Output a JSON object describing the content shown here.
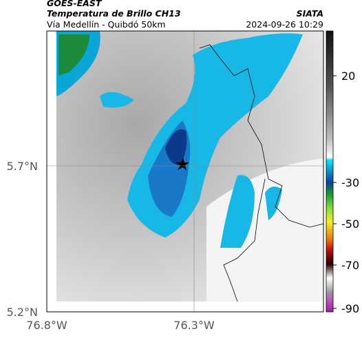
{
  "header": {
    "source": "GOES-EAST",
    "title": "Temperatura de Brillo CH13",
    "subtitle": "Vía Medellín - Quibdó 50km",
    "organization": "SIATA",
    "timestamp": "2024-09-26 10:29"
  },
  "map": {
    "lat_labels": [
      "5.7°N",
      "5.2°N"
    ],
    "lon_labels": [
      "76.8°W",
      "76.3°W"
    ]
  },
  "colorbar": {
    "ticks": [
      20,
      -30,
      -50,
      -70,
      -90
    ]
  }
}
